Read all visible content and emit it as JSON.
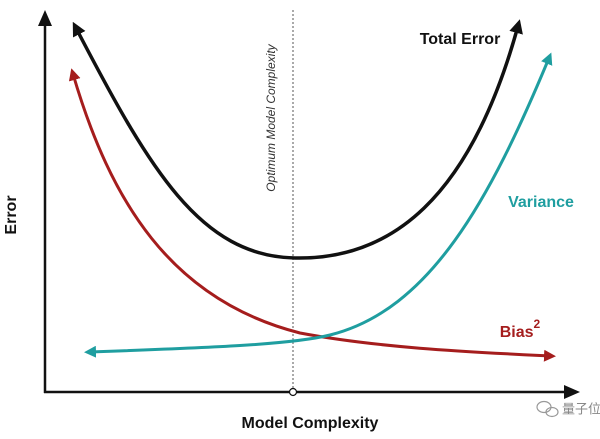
{
  "axes": {
    "y_label": "Error",
    "x_label": "Model Complexity"
  },
  "optimum_label": "Optimum Model Complexity",
  "curves": {
    "total_error": "Total Error",
    "variance": "Variance",
    "bias": "Bias",
    "bias_exponent": "2"
  },
  "watermark": "量子位"
}
